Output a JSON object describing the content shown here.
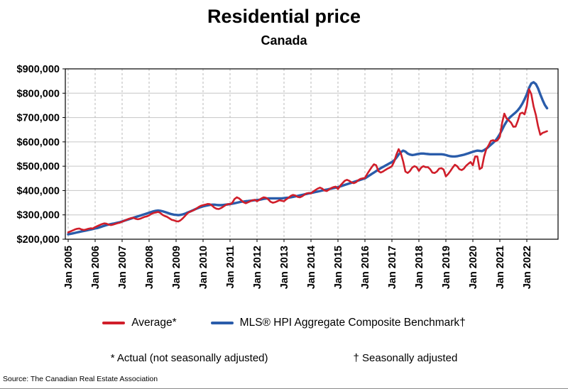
{
  "title": "Residential price",
  "subtitle": "Canada",
  "legend": {
    "items": [
      {
        "id": "average",
        "label": "Average*"
      },
      {
        "id": "benchmark",
        "label": "MLS® HPI Aggregate Composite Benchmark†"
      }
    ]
  },
  "footnotes": {
    "actual": "* Actual (not seasonally adjusted)",
    "seasonal": "† Seasonally adjusted"
  },
  "source": "Source: The Canadian Real Estate Association",
  "chart_data": {
    "type": "line",
    "title": "Residential price",
    "subtitle": "Canada",
    "x_start": "Jan 2005",
    "x_end": "Oct 2022",
    "x_interval": "monthly",
    "values_in": "thousands of CAD",
    "ylim": [
      200,
      900
    ],
    "grid": {
      "horizontal": "solid",
      "vertical": "dashed"
    },
    "y_ticks": [
      {
        "value": 200,
        "label": "$200,000"
      },
      {
        "value": 300,
        "label": "$300,000"
      },
      {
        "value": 400,
        "label": "$400,000"
      },
      {
        "value": 500,
        "label": "$500,000"
      },
      {
        "value": 600,
        "label": "$600,000"
      },
      {
        "value": 700,
        "label": "$700,000"
      },
      {
        "value": 800,
        "label": "$800,000"
      },
      {
        "value": 900,
        "label": "$900,000"
      }
    ],
    "x_ticks": [
      "Jan 2005",
      "Jan 2006",
      "Jan 2007",
      "Jan 2008",
      "Jan 2009",
      "Jan 2010",
      "Jan 2011",
      "Jan 2012",
      "Jan 2013",
      "Jan 2014",
      "Jan 2015",
      "Jan 2016",
      "Jan 2017",
      "Jan 2018",
      "Jan 2019",
      "Jan 2020",
      "Jan 2021",
      "Jan 2022"
    ],
    "series": [
      {
        "id": "average",
        "name": "Average*",
        "color": "#d01e2a",
        "width": 2.6,
        "values": [
          228,
          232,
          236,
          240,
          243,
          244,
          240,
          238,
          240,
          243,
          245,
          244,
          250,
          254,
          258,
          262,
          265,
          264,
          260,
          258,
          260,
          263,
          266,
          268,
          272,
          276,
          280,
          284,
          287,
          288,
          284,
          282,
          284,
          288,
          292,
          294,
          298,
          304,
          308,
          310,
          312,
          308,
          300,
          295,
          292,
          286,
          280,
          278,
          274,
          273,
          278,
          286,
          296,
          306,
          312,
          316,
          320,
          326,
          332,
          337,
          340,
          342,
          345,
          344,
          338,
          330,
          325,
          324,
          328,
          334,
          340,
          344,
          344,
          350,
          365,
          372,
          368,
          360,
          352,
          348,
          352,
          356,
          360,
          362,
          356,
          362,
          368,
          372,
          370,
          364,
          354,
          350,
          352,
          356,
          360,
          358,
          356,
          364,
          370,
          378,
          382,
          380,
          374,
          372,
          376,
          382,
          388,
          390,
          388,
          396,
          402,
          408,
          412,
          408,
          400,
          398,
          404,
          410,
          414,
          416,
          406,
          420,
          430,
          440,
          444,
          440,
          434,
          430,
          434,
          442,
          448,
          450,
          452,
          468,
          482,
          496,
          508,
          504,
          480,
          474,
          478,
          484,
          490,
          494,
          500,
          519,
          548,
          570,
          552,
          520,
          478,
          472,
          480,
          494,
          500,
          496,
          481,
          494,
          500,
          496,
          496,
          488,
          474,
          472,
          478,
          490,
          492,
          486,
          458,
          468,
          480,
          494,
          506,
          500,
          488,
          484,
          490,
          502,
          510,
          517,
          504,
          540,
          540,
          488,
          494,
          539,
          571,
          586,
          604,
          607,
          603,
          607,
          621,
          678,
          716,
          696,
          688,
          679,
          662,
          663,
          686,
          716,
          720,
          713,
          748,
          816,
          796,
          746,
          711,
          665,
          629,
          637,
          640,
          644
        ]
      },
      {
        "id": "benchmark",
        "name": "MLS® HPI Aggregate Composite Benchmark†",
        "color": "#2a5caa",
        "width": 3.4,
        "values": [
          220,
          222,
          224,
          226,
          228,
          230,
          232,
          234,
          236,
          238,
          240,
          242,
          244,
          246,
          249,
          252,
          255,
          258,
          260,
          262,
          264,
          266,
          268,
          270,
          273,
          276,
          279,
          282,
          285,
          288,
          291,
          294,
          297,
          300,
          303,
          306,
          309,
          312,
          315,
          317,
          318,
          317,
          315,
          312,
          309,
          306,
          303,
          301,
          300,
          299,
          300,
          302,
          305,
          309,
          313,
          317,
          321,
          325,
          329,
          332,
          335,
          337,
          339,
          341,
          342,
          342,
          341,
          340,
          340,
          341,
          342,
          343,
          344,
          346,
          348,
          350,
          352,
          354,
          355,
          356,
          357,
          358,
          359,
          360,
          361,
          362,
          364,
          366,
          367,
          368,
          368,
          368,
          368,
          368,
          368,
          368,
          369,
          370,
          371,
          372,
          374,
          376,
          378,
          380,
          382,
          384,
          386,
          388,
          390,
          392,
          394,
          396,
          398,
          400,
          402,
          404,
          406,
          408,
          410,
          412,
          414,
          417,
          420,
          423,
          426,
          429,
          432,
          435,
          438,
          441,
          444,
          447,
          450,
          456,
          462,
          468,
          474,
          480,
          486,
          492,
          497,
          502,
          507,
          512,
          517,
          524,
          535,
          548,
          558,
          564,
          560,
          552,
          548,
          546,
          547,
          549,
          551,
          552,
          552,
          551,
          550,
          549,
          549,
          549,
          549,
          549,
          549,
          548,
          546,
          543,
          541,
          540,
          540,
          541,
          543,
          545,
          547,
          550,
          553,
          556,
          559,
          562,
          564,
          563,
          562,
          566,
          572,
          580,
          588,
          596,
          605,
          617,
          632,
          650,
          668,
          684,
          696,
          705,
          713,
          721,
          730,
          742,
          757,
          775,
          796,
          822,
          840,
          845,
          838,
          820,
          795,
          772,
          752,
          738
        ]
      }
    ]
  }
}
